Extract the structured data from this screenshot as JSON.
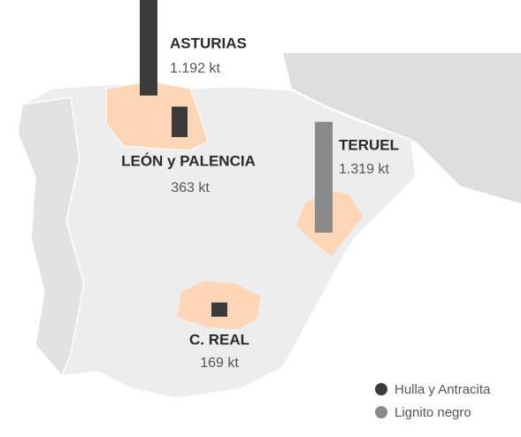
{
  "legend": [
    {
      "name": "Hulla y Antracita",
      "color": "#3b3b3b"
    },
    {
      "name": "Lignito negro",
      "color": "#8a8a8a"
    }
  ],
  "regions": [
    {
      "name": "ASTURIAS",
      "value": 1192,
      "value_label": "1.192 kt",
      "series": 0
    },
    {
      "name": "LEÓN y PALENCIA",
      "value": 363,
      "value_label": "363 kt",
      "series": 0
    },
    {
      "name": "TERUEL",
      "value": 1319,
      "value_label": "1.319 kt",
      "series": 1
    },
    {
      "name": "C. REAL",
      "value": 169,
      "value_label": "169 kt",
      "series": 0
    }
  ]
}
